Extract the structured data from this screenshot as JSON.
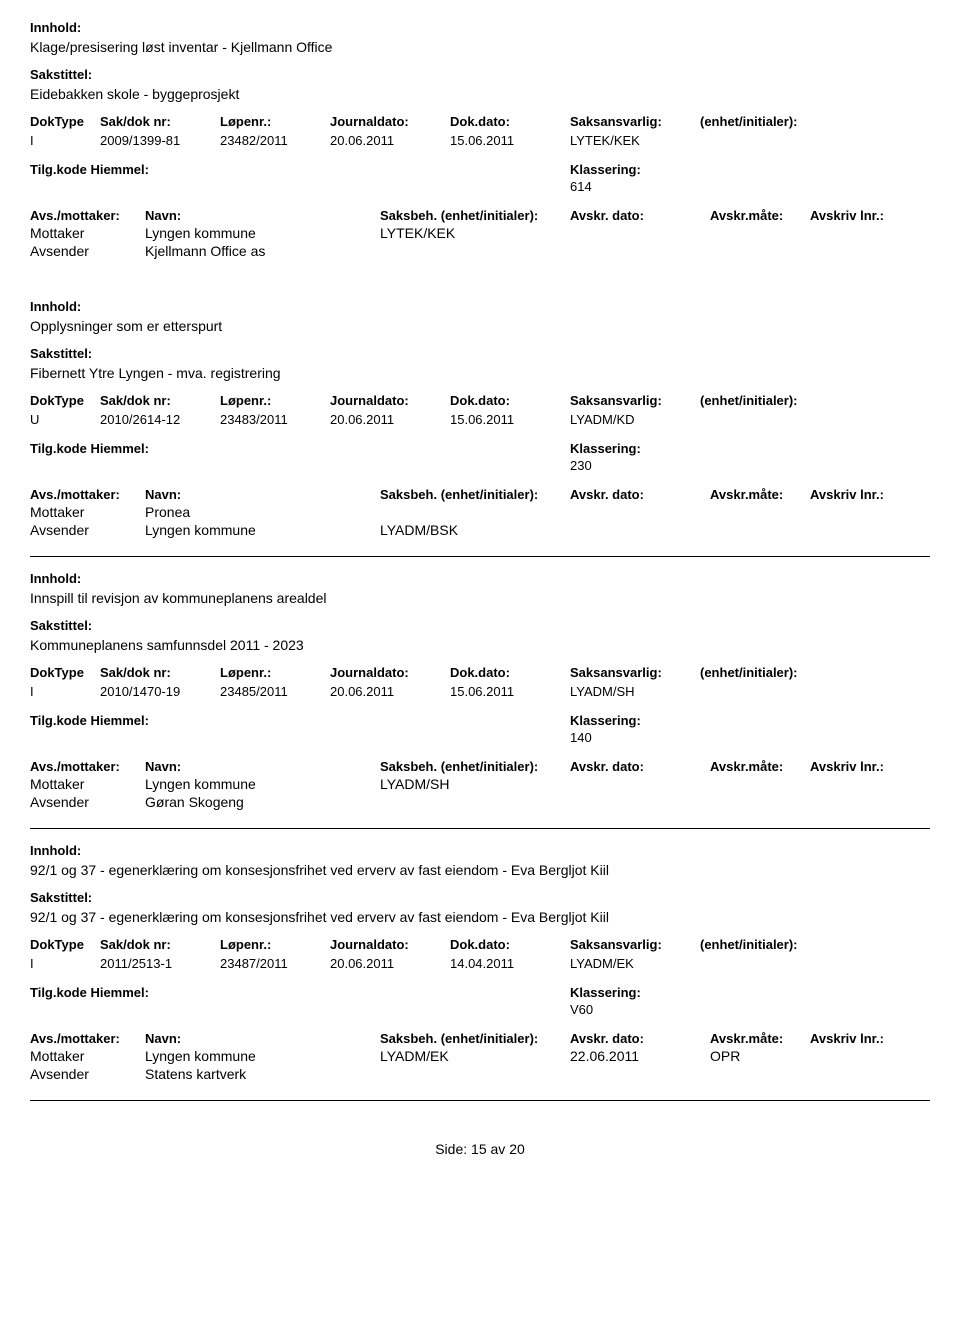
{
  "labels": {
    "innhold": "Innhold:",
    "sakstittel": "Sakstittel:",
    "doktype": "DokType",
    "saknr": "Sak/dok nr:",
    "lopenr": "Løpenr.:",
    "journaldato": "Journaldato:",
    "dokdato": "Dok.dato:",
    "saksansvarlig": "Saksansvarlig:",
    "enhet": "(enhet/initialer):",
    "tilgkode": "Tilg.kode",
    "hiemmel": "Hiemmel:",
    "klassering": "Klassering:",
    "avsmottaker": "Avs./mottaker:",
    "navn": "Navn:",
    "saksbeh": "Saksbeh.",
    "saksbeh_enhet": "(enhet/initialer):",
    "avskr_dato": "Avskr. dato:",
    "avskr_mate": "Avskr.måte:",
    "avskriv_lnr": "Avskriv lnr.:",
    "mottaker": "Mottaker",
    "avsender": "Avsender",
    "side": "Side:",
    "av": "av"
  },
  "records": [
    {
      "innhold": "Klage/presisering løst inventar - Kjellmann Office",
      "sakstittel": "Eidebakken skole - byggeprosjekt",
      "doktype": "I",
      "saknr": "2009/1399-81",
      "lopenr": "23482/2011",
      "journaldato": "20.06.2011",
      "dokdato": "15.06.2011",
      "saksansvarlig": "LYTEK/KEK",
      "klassering": "614",
      "mottaker_navn": "Lyngen kommune",
      "mottaker_saksbeh": "LYTEK/KEK",
      "mottaker_date": "",
      "mottaker_mate": "",
      "avsender_navn": "Kjellmann Office as",
      "avsender_saksbeh": "",
      "show_divider": false
    },
    {
      "innhold": "Opplysninger som er etterspurt",
      "sakstittel": "Fibernett Ytre Lyngen - mva. registrering",
      "doktype": "U",
      "saknr": "2010/2614-12",
      "lopenr": "23483/2011",
      "journaldato": "20.06.2011",
      "dokdato": "15.06.2011",
      "saksansvarlig": "LYADM/KD",
      "klassering": "230",
      "mottaker_navn": "Pronea",
      "mottaker_saksbeh": "",
      "mottaker_date": "",
      "mottaker_mate": "",
      "avsender_navn": "Lyngen kommune",
      "avsender_saksbeh": "LYADM/BSK",
      "show_divider": true
    },
    {
      "innhold": "Innspill til revisjon av kommuneplanens arealdel",
      "sakstittel": "Kommuneplanens samfunnsdel 2011 - 2023",
      "doktype": "I",
      "saknr": "2010/1470-19",
      "lopenr": "23485/2011",
      "journaldato": "20.06.2011",
      "dokdato": "15.06.2011",
      "saksansvarlig": "LYADM/SH",
      "klassering": "140",
      "mottaker_navn": "Lyngen kommune",
      "mottaker_saksbeh": "LYADM/SH",
      "mottaker_date": "",
      "mottaker_mate": "",
      "avsender_navn": "Gøran Skogeng",
      "avsender_saksbeh": "",
      "show_divider": true
    },
    {
      "innhold": "92/1 og 37 - egenerklæring om konsesjonsfrihet ved erverv av fast eiendom - Eva Bergljot Kiil",
      "sakstittel": "92/1 og 37 - egenerklæring om konsesjonsfrihet ved erverv av fast eiendom - Eva Bergljot Kiil",
      "doktype": "I",
      "saknr": "2011/2513-1",
      "lopenr": "23487/2011",
      "journaldato": "20.06.2011",
      "dokdato": "14.04.2011",
      "saksansvarlig": "LYADM/EK",
      "klassering": "V60",
      "mottaker_navn": "Lyngen kommune",
      "mottaker_saksbeh": "LYADM/EK",
      "mottaker_date": "22.06.2011",
      "mottaker_mate": "OPR",
      "avsender_navn": "Statens kartverk",
      "avsender_saksbeh": "",
      "show_divider": true
    }
  ],
  "footer": {
    "page": "15",
    "total": "20"
  }
}
